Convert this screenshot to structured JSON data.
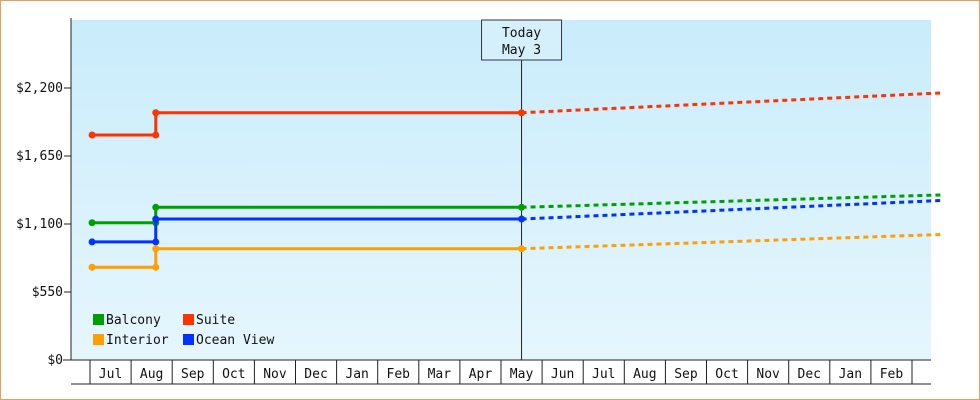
{
  "chart_data": {
    "type": "line",
    "title": "",
    "xlabel": "",
    "ylabel": "",
    "ylim": [
      0,
      2750
    ],
    "yticks": [
      0,
      550,
      1100,
      1650,
      2200
    ],
    "ytick_labels": [
      "$0",
      "$550",
      "$1,100",
      "$1,650",
      "$2,200"
    ],
    "months": [
      "Jul",
      "Aug",
      "Sep",
      "Oct",
      "Nov",
      "Dec",
      "Jan",
      "Feb",
      "Mar",
      "Apr",
      "May",
      "Jun",
      "Jul",
      "Aug",
      "Sep",
      "Oct",
      "Nov",
      "Dec",
      "Jan",
      "Feb"
    ],
    "today": {
      "line1": "Today",
      "line2": "May 3",
      "month_index": 10.0
    },
    "x_start": -0.45,
    "x_end": 20.2,
    "legend_placement": "bottom-left",
    "grid": false,
    "background_gradient": [
      "#c9ecfb",
      "#e6f6fd"
    ],
    "series": [
      {
        "name": "Suite",
        "color": "#ff3300",
        "history": [
          [
            -0.45,
            1820
          ],
          [
            1.1,
            1820
          ],
          [
            1.1,
            2000
          ],
          [
            10.0,
            2000
          ]
        ],
        "forecast": [
          [
            10.0,
            2000
          ],
          [
            20.2,
            2160
          ]
        ]
      },
      {
        "name": "Balcony",
        "color": "#00a000",
        "history": [
          [
            -0.45,
            1110
          ],
          [
            1.1,
            1110
          ],
          [
            1.1,
            1235
          ],
          [
            10.0,
            1235
          ]
        ],
        "forecast": [
          [
            10.0,
            1235
          ],
          [
            20.2,
            1335
          ]
        ]
      },
      {
        "name": "Ocean View",
        "color": "#0033ff",
        "history": [
          [
            -0.45,
            955
          ],
          [
            1.1,
            955
          ],
          [
            1.1,
            1140
          ],
          [
            10.0,
            1140
          ]
        ],
        "forecast": [
          [
            10.0,
            1140
          ],
          [
            20.2,
            1290
          ]
        ]
      },
      {
        "name": "Interior",
        "color": "#ffa000",
        "history": [
          [
            -0.45,
            750
          ],
          [
            1.1,
            750
          ],
          [
            1.1,
            900
          ],
          [
            10.0,
            900
          ]
        ],
        "forecast": [
          [
            10.0,
            900
          ],
          [
            20.2,
            1015
          ]
        ]
      }
    ],
    "legend": [
      {
        "name": "Balcony",
        "color": "#00a000"
      },
      {
        "name": "Suite",
        "color": "#ff3300"
      },
      {
        "name": "Interior",
        "color": "#ffa000"
      },
      {
        "name": "Ocean View",
        "color": "#0033ff"
      }
    ]
  }
}
